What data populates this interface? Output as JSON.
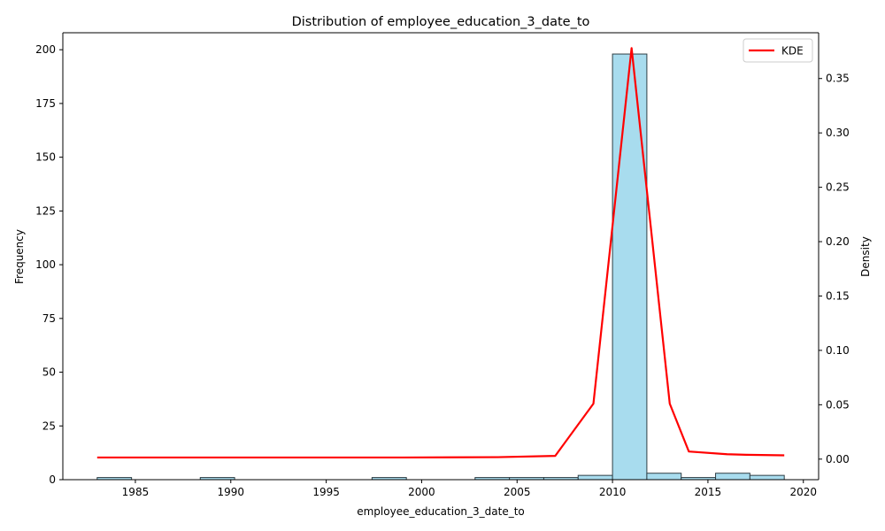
{
  "chart_data": {
    "type": "bar",
    "title": "Distribution of employee_education_3_date_to",
    "xlabel": "employee_education_3_date_to",
    "ylabel": "Frequency",
    "y2label": "Density",
    "xlim": [
      1981.2,
      2020.8
    ],
    "ylim": [
      0,
      207.9
    ],
    "y2lim": [
      -0.0189,
      0.3921
    ],
    "x_ticks": [
      1985,
      1990,
      1995,
      2000,
      2005,
      2010,
      2015,
      2020
    ],
    "y_ticks": [
      0,
      25,
      50,
      75,
      100,
      125,
      150,
      175,
      200
    ],
    "y2_ticks": [
      0.0,
      0.05,
      0.1,
      0.15,
      0.2,
      0.25,
      0.3,
      0.35
    ],
    "y2_tick_labels": [
      "0.00",
      "0.05",
      "0.10",
      "0.15",
      "0.20",
      "0.25",
      "0.30",
      "0.35"
    ],
    "histogram": {
      "name": "",
      "bin_start": 1983,
      "bin_width": 1.8,
      "counts": [
        1,
        0,
        0,
        1,
        0,
        0,
        0,
        0,
        1,
        0,
        0,
        1,
        1,
        1,
        2,
        198,
        3,
        1,
        3,
        2
      ],
      "color": "#a8dcee",
      "edge_color": "#2f3f46"
    },
    "series": [
      {
        "name": "KDE",
        "type": "line",
        "color": "#ff0000",
        "x": [
          1983,
          1987,
          1991,
          1995,
          1999,
          2004,
          2007,
          2009,
          2011,
          2013,
          2014,
          2016,
          2017,
          2019
        ],
        "y": [
          0.0015,
          0.0015,
          0.0015,
          0.0015,
          0.0015,
          0.0018,
          0.003,
          0.051,
          0.378,
          0.051,
          0.007,
          0.0045,
          0.004,
          0.0035
        ]
      }
    ],
    "grid": false,
    "legend": {
      "position": "top-right",
      "entries": [
        "KDE"
      ]
    }
  }
}
